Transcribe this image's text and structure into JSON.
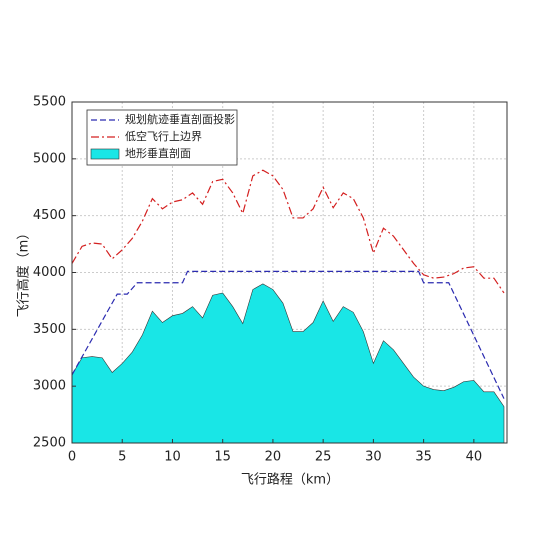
{
  "chart_data": {
    "type": "line",
    "xlabel": "飞行路程（km）",
    "ylabel": "飞行高度（m）",
    "xlim": [
      0,
      43.3
    ],
    "ylim": [
      2500,
      5500
    ],
    "xticks": [
      0,
      5,
      10,
      15,
      20,
      25,
      30,
      35,
      40
    ],
    "yticks": [
      2500,
      3000,
      3500,
      4000,
      4500,
      5000,
      5500
    ],
    "grid": true,
    "legend": "upper left",
    "x": [
      0,
      1,
      2,
      3,
      4,
      5,
      6,
      7,
      8,
      9,
      10,
      11,
      12,
      13,
      14,
      15,
      16,
      17,
      18,
      19,
      20,
      21,
      22,
      23,
      24,
      25,
      26,
      27,
      28,
      29,
      30,
      31,
      32,
      33,
      34,
      35,
      36,
      37,
      38,
      39,
      40,
      41,
      42,
      43
    ],
    "series": [
      {
        "name": "规划航迹垂直剖面投影",
        "type": "line",
        "color": "#2b2bb0",
        "linestyle": "--",
        "x": [
          0,
          4.5,
          5.5,
          6.5,
          11,
          11.5,
          34.5,
          35,
          37.5,
          43
        ],
        "values": [
          3100,
          3810,
          3810,
          3910,
          3910,
          4010,
          4010,
          3910,
          3910,
          2890
        ]
      },
      {
        "name": "低空飞行上边界",
        "type": "line",
        "color": "#d42020",
        "linestyle": "-.",
        "values": [
          4080,
          4230,
          4260,
          4250,
          4120,
          4200,
          4300,
          4450,
          4650,
          4560,
          4620,
          4640,
          4700,
          4600,
          4800,
          4820,
          4700,
          4520,
          4850,
          4900,
          4850,
          4730,
          4480,
          4480,
          4560,
          4750,
          4570,
          4700,
          4650,
          4480,
          4170,
          4390,
          4320,
          4200,
          4080,
          3980,
          3950,
          3960,
          3990,
          4040,
          4050,
          3950,
          3950,
          3820
        ]
      },
      {
        "name": "地形垂直剖面",
        "type": "area",
        "color": "#19e6e6",
        "values": [
          3100,
          3250,
          3260,
          3250,
          3120,
          3200,
          3300,
          3450,
          3660,
          3560,
          3620,
          3640,
          3700,
          3600,
          3800,
          3820,
          3700,
          3550,
          3850,
          3900,
          3850,
          3730,
          3480,
          3480,
          3560,
          3750,
          3570,
          3700,
          3650,
          3480,
          3200,
          3400,
          3320,
          3200,
          3080,
          3000,
          2970,
          2960,
          2990,
          3040,
          3050,
          2950,
          2950,
          2820
        ]
      }
    ]
  }
}
